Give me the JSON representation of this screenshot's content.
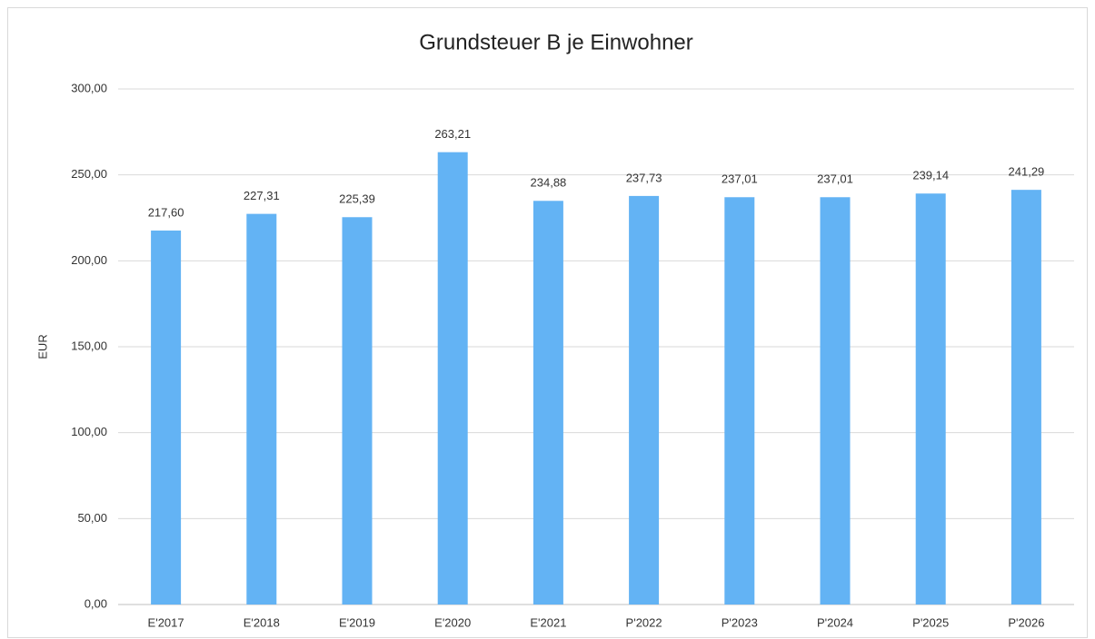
{
  "chart_data": {
    "type": "bar",
    "title": "Grundsteuer B je Einwohner",
    "y_label": "EUR",
    "categories": [
      "E'2017",
      "E'2018",
      "E'2019",
      "E'2020",
      "E'2021",
      "P'2022",
      "P'2023",
      "P'2024",
      "P'2025",
      "P'2026"
    ],
    "values": [
      217.6,
      227.31,
      225.39,
      263.21,
      234.88,
      237.73,
      237.01,
      237.01,
      239.14,
      241.29
    ],
    "value_labels": [
      "217,60",
      "227,31",
      "225,39",
      "263,21",
      "234,88",
      "237,73",
      "237,01",
      "237,01",
      "239,14",
      "241,29"
    ],
    "color": "#63b3f4",
    "ylim": [
      0,
      300
    ],
    "yticks": [
      {
        "value": 0,
        "label": "0,00"
      },
      {
        "value": 50,
        "label": "50,00"
      },
      {
        "value": 100,
        "label": "100,00"
      },
      {
        "value": 150,
        "label": "150,00"
      },
      {
        "value": 200,
        "label": "200,00"
      },
      {
        "value": 250,
        "label": "250,00"
      },
      {
        "value": 300,
        "label": "300,00"
      }
    ],
    "grid": true
  }
}
